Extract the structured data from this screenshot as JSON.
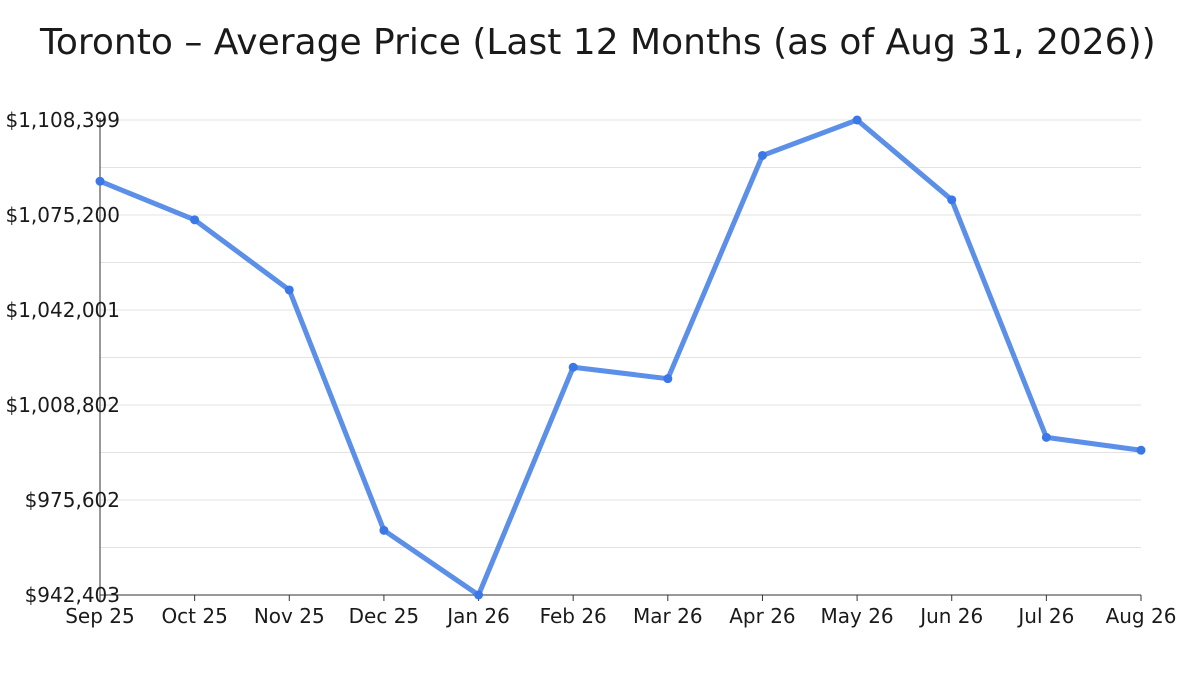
{
  "chart_data": {
    "type": "line",
    "title": "Toronto – Average Price (Last 12 Months (as of Aug 31, 2026))",
    "xlabel": "",
    "ylabel": "",
    "categories": [
      "Sep 25",
      "Oct 25",
      "Nov 25",
      "Dec 25",
      "Jan 26",
      "Feb 26",
      "Mar 26",
      "Apr 26",
      "May 26",
      "Jun 26",
      "Jul 26",
      "Aug 26"
    ],
    "series": [
      {
        "values": [
          1087000,
          1073500,
          1049000,
          965000,
          942403,
          1022000,
          1018000,
          1096000,
          1108399,
          1080500,
          997500,
          993000
        ]
      }
    ],
    "ylim": [
      942403,
      1108399
    ],
    "yticks": [
      942403,
      975602,
      1008802,
      1042001,
      1075200,
      1108399
    ],
    "ytick_labels": [
      "$942,403",
      "$975,602",
      "$1,008,802",
      "$1,042,001",
      "$1,075,200",
      "$1,108,399"
    ],
    "grid": true,
    "line_color": "#5b8fe8",
    "marker_color": "#3b78e7"
  }
}
